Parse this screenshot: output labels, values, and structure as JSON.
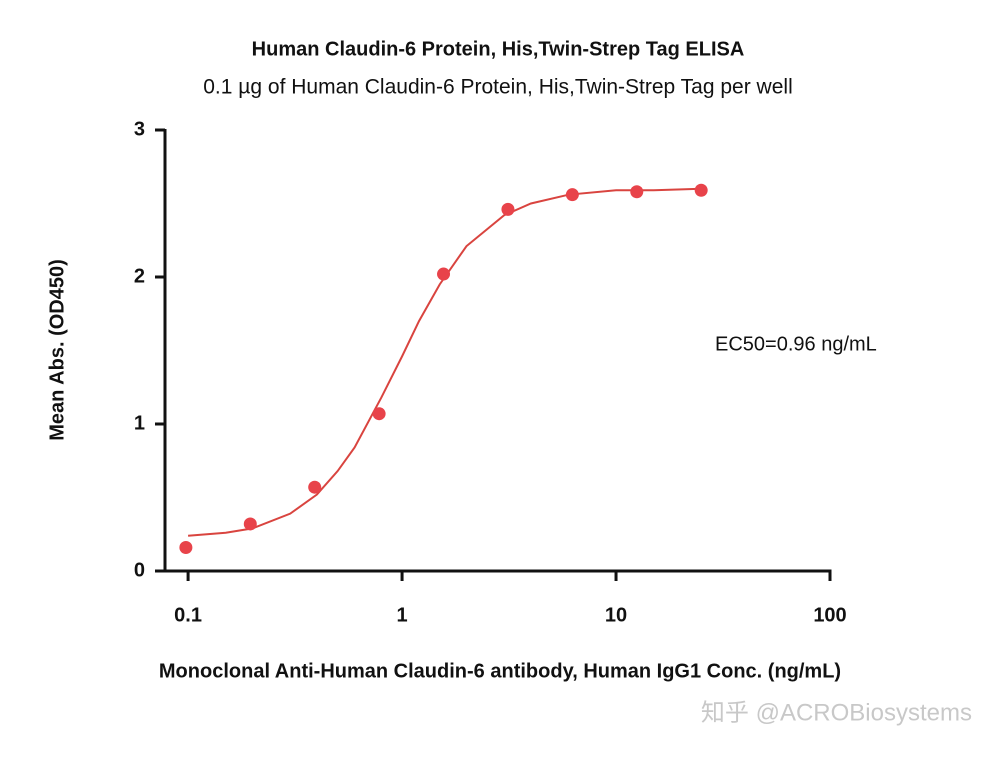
{
  "chart_data": {
    "type": "scatter",
    "title": "Human Claudin-6 Protein, His,Twin-Strep Tag ELISA",
    "subtitle": "0.1 µg of Human Claudin-6 Protein, His,Twin-Strep Tag per well",
    "x_label": "Monoclonal Anti-Human Claudin-6 antibody, Human IgG1 Conc. (ng/mL)",
    "y_label": "Mean Abs. (OD450)",
    "annotation": "EC50=0.96 ng/mL",
    "watermark": "知乎 @ACROBiosystems",
    "xscale": "log",
    "xlim": [
      0.078,
      100
    ],
    "xticks": [
      0.1,
      1,
      10,
      100
    ],
    "ylim": [
      0,
      3
    ],
    "yticks": [
      0,
      1,
      2,
      3
    ],
    "series": [
      {
        "type": "scatter",
        "color": "#e8434a",
        "x": [
          0.09765625,
          0.1953125,
          0.390625,
          0.78125,
          1.5625,
          3.125,
          6.25,
          12.5,
          25
        ],
        "values": [
          0.16,
          0.32,
          0.57,
          1.07,
          2.02,
          2.46,
          2.56,
          2.58,
          2.59
        ]
      },
      {
        "type": "line",
        "color": "#d9443f",
        "x": [
          0.1,
          0.15,
          0.2,
          0.3,
          0.4,
          0.5,
          0.6,
          0.8,
          1,
          1.2,
          1.5,
          2,
          3,
          4,
          6,
          10,
          15,
          25
        ],
        "values": [
          0.24,
          0.26,
          0.29,
          0.39,
          0.52,
          0.68,
          0.84,
          1.18,
          1.46,
          1.7,
          1.95,
          2.21,
          2.42,
          2.5,
          2.56,
          2.59,
          2.59,
          2.6
        ]
      }
    ]
  }
}
